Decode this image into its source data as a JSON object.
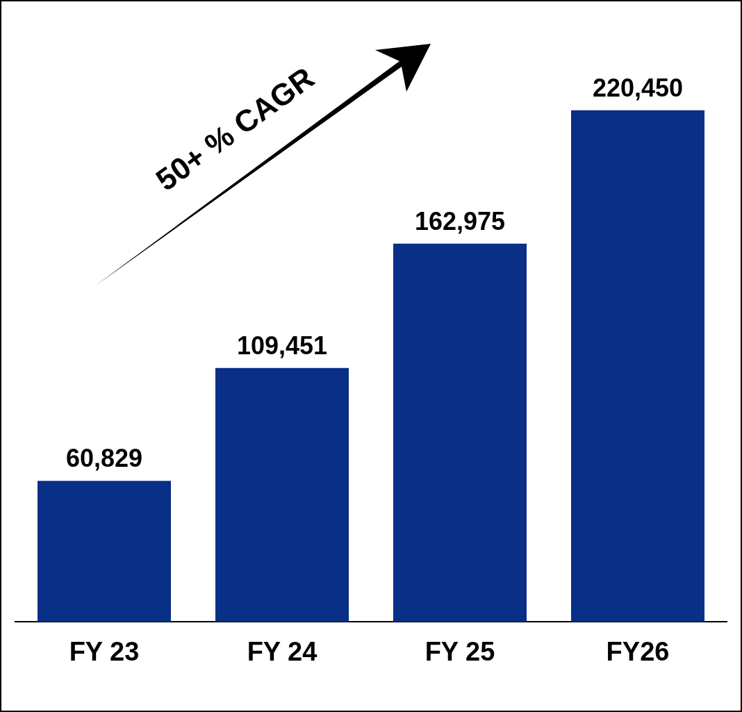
{
  "chart_data": {
    "type": "bar",
    "categories": [
      "FY 23",
      "FY 24",
      "FY 25",
      "FY26"
    ],
    "values": [
      60829,
      109451,
      162975,
      220450
    ],
    "value_labels": [
      "60,829",
      "109,451",
      "162,975",
      "220,450"
    ],
    "color": "#092f86",
    "grid": false,
    "legend": false,
    "annotations": [
      "50+ % CAGR"
    ]
  }
}
